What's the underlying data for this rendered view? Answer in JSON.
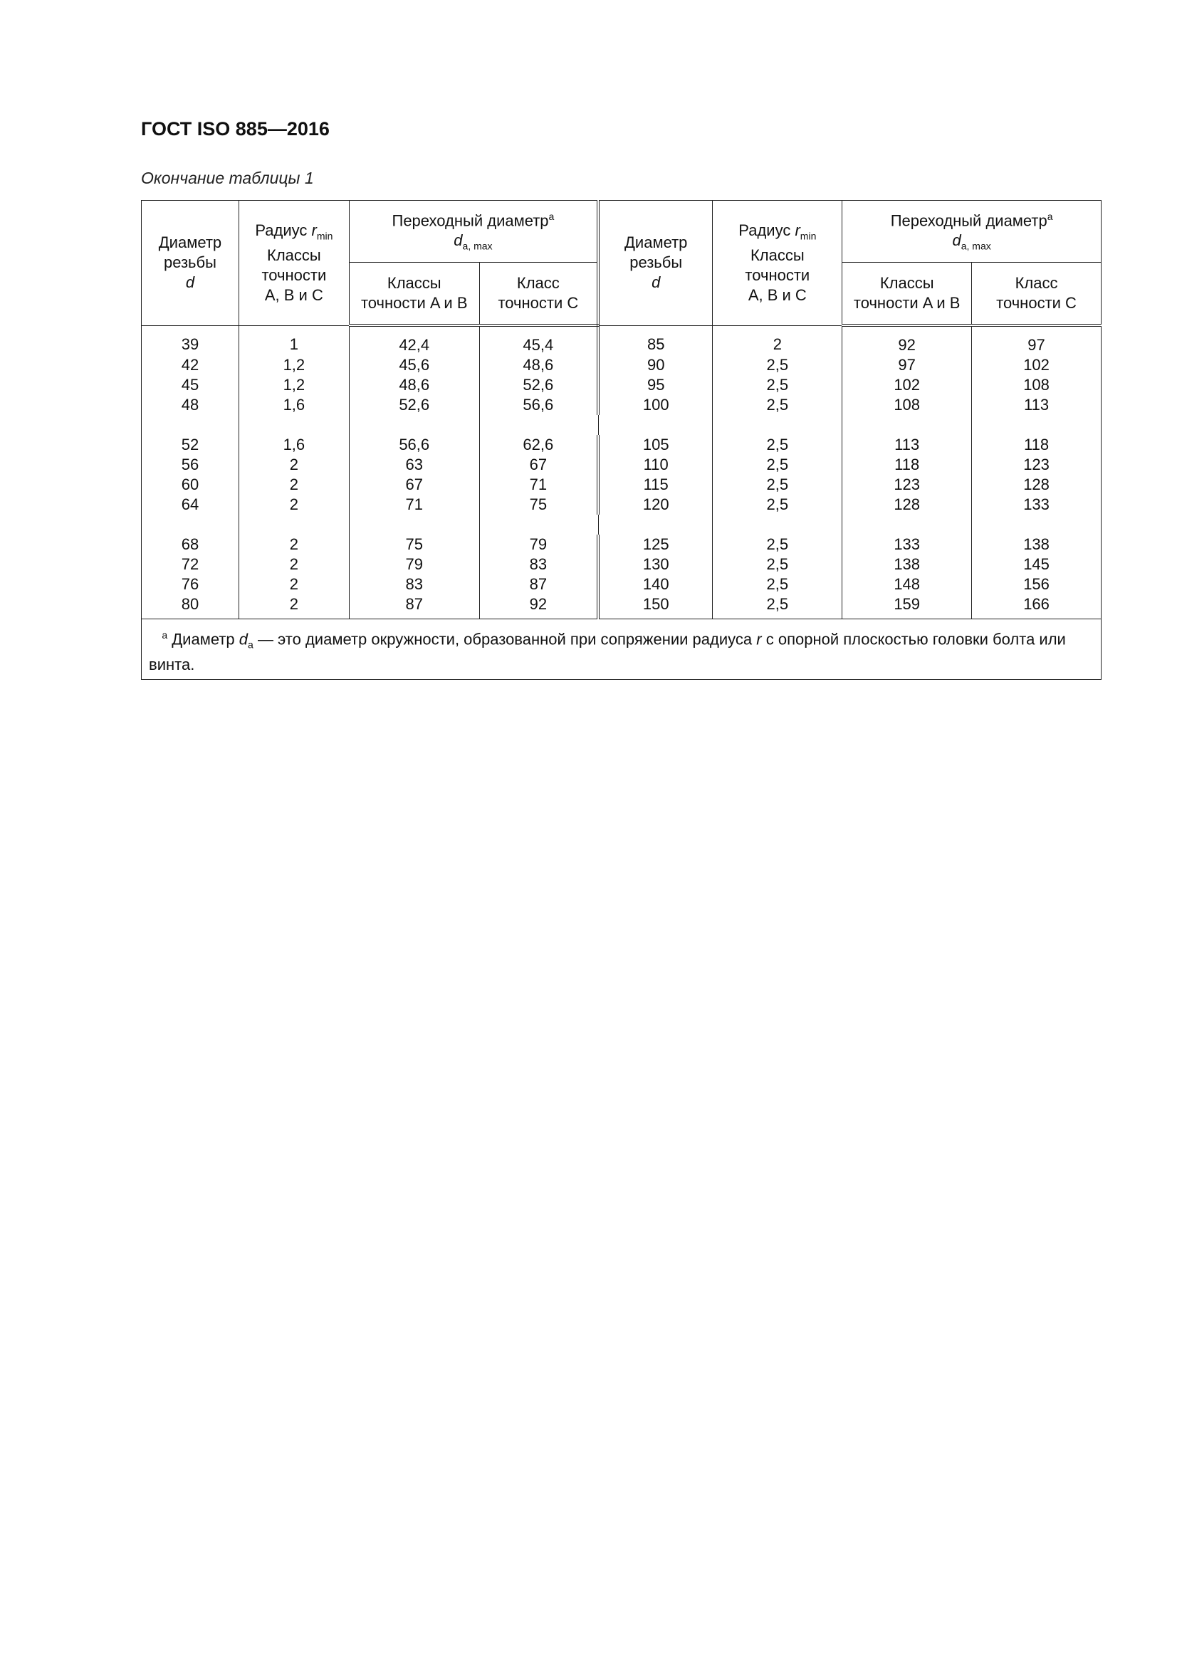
{
  "header": {
    "title": "ГОСТ ISO 885—2016"
  },
  "caption": "Окончание таблицы 1",
  "table": {
    "headers": {
      "diameter": [
        "Диаметр",
        "резьбы",
        "d"
      ],
      "radius": {
        "label": "Радиус",
        "var": "r",
        "sub": "min",
        "line2": "Классы",
        "line3": "точности",
        "line4": "A, B и C"
      },
      "transition": {
        "label": "Переходный диаметр",
        "sup": "a",
        "var": "d",
        "sub": "a, max"
      },
      "class_ab": [
        "Классы",
        "точности A и B"
      ],
      "class_c": [
        "Класс",
        "точности C"
      ]
    },
    "rows": [
      [
        "39",
        "1",
        "42,4",
        "45,4",
        "85",
        "2",
        "92",
        "97"
      ],
      [
        "42",
        "1,2",
        "45,6",
        "48,6",
        "90",
        "2,5",
        "97",
        "102"
      ],
      [
        "45",
        "1,2",
        "48,6",
        "52,6",
        "95",
        "2,5",
        "102",
        "108"
      ],
      [
        "48",
        "1,6",
        "52,6",
        "56,6",
        "100",
        "2,5",
        "108",
        "113"
      ],
      [
        "52",
        "1,6",
        "56,6",
        "62,6",
        "105",
        "2,5",
        "113",
        "118"
      ],
      [
        "56",
        "2",
        "63",
        "67",
        "110",
        "2,5",
        "118",
        "123"
      ],
      [
        "60",
        "2",
        "67",
        "71",
        "115",
        "2,5",
        "123",
        "128"
      ],
      [
        "64",
        "2",
        "71",
        "75",
        "120",
        "2,5",
        "128",
        "133"
      ],
      [
        "68",
        "2",
        "75",
        "79",
        "125",
        "2,5",
        "133",
        "138"
      ],
      [
        "72",
        "2",
        "79",
        "83",
        "130",
        "2,5",
        "138",
        "145"
      ],
      [
        "76",
        "2",
        "83",
        "87",
        "140",
        "2,5",
        "148",
        "156"
      ],
      [
        "80",
        "2",
        "87",
        "92",
        "150",
        "2,5",
        "159",
        "166"
      ]
    ],
    "footnote": {
      "mark": "a",
      "prefix": "Диаметр",
      "var": "d",
      "sub": "a",
      "middle": "— это диаметр окружности, образованной при сопряжении радиуса",
      "var2": "r",
      "suffix": "с опорной плоскостью головки болта или винта."
    }
  }
}
